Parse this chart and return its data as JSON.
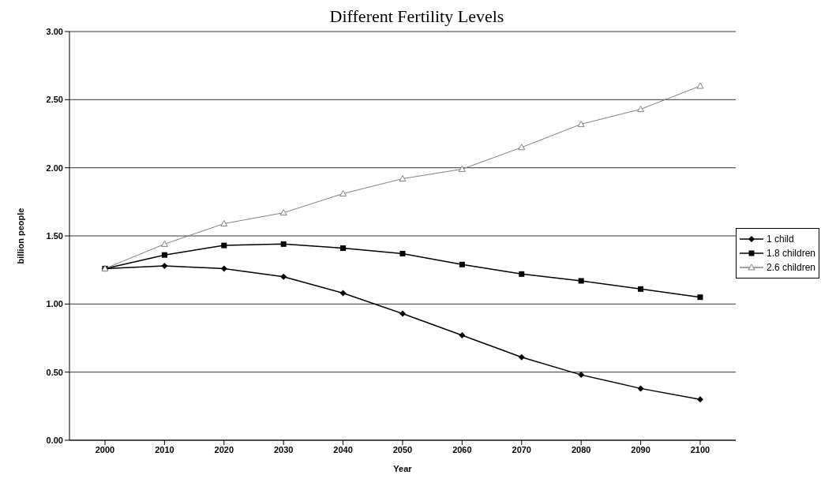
{
  "chart_data": {
    "type": "line",
    "title": "Different Fertility Levels",
    "xlabel": "Year",
    "ylabel": "billion people",
    "categories": [
      "2000",
      "2010",
      "2020",
      "2030",
      "2040",
      "2050",
      "2060",
      "2070",
      "2080",
      "2090",
      "2100"
    ],
    "series": [
      {
        "name": "1 child",
        "color": "#000000",
        "marker": "diamond",
        "values": [
          1.26,
          1.28,
          1.26,
          1.2,
          1.08,
          0.93,
          0.77,
          0.61,
          0.48,
          0.38,
          0.3
        ]
      },
      {
        "name": "1.8 children",
        "color": "#000000",
        "marker": "square",
        "values": [
          1.26,
          1.36,
          1.43,
          1.44,
          1.41,
          1.37,
          1.29,
          1.22,
          1.17,
          1.11,
          1.05
        ]
      },
      {
        "name": "2.6 children",
        "color": "#808080",
        "marker": "triangle",
        "values": [
          1.26,
          1.44,
          1.59,
          1.67,
          1.81,
          1.92,
          1.99,
          2.15,
          2.32,
          2.43,
          2.6
        ]
      }
    ],
    "ylim": [
      0,
      3
    ],
    "yticks": [
      {
        "value": 0,
        "label": "0.00"
      },
      {
        "value": 0.5,
        "label": "0.50"
      },
      {
        "value": 1,
        "label": "1.00"
      },
      {
        "value": 1.5,
        "label": "1.50"
      },
      {
        "value": 2,
        "label": "2.00"
      },
      {
        "value": 2.5,
        "label": "2.50"
      },
      {
        "value": 3,
        "label": "3.00"
      }
    ],
    "grid": "y",
    "legend": "right"
  }
}
